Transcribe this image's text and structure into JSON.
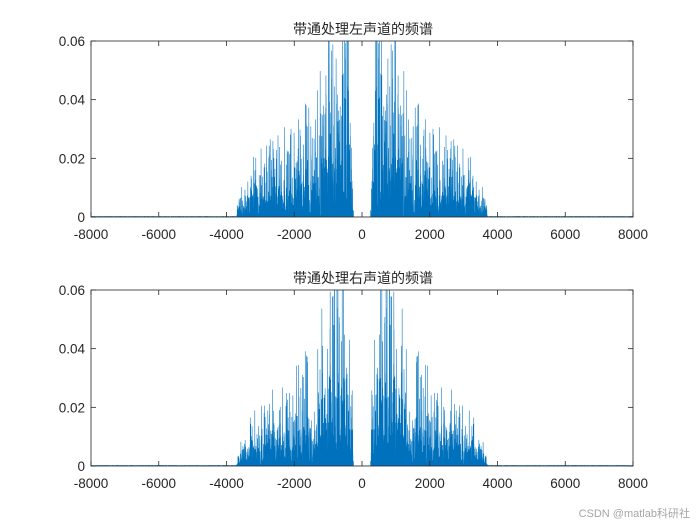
{
  "chart_data": [
    {
      "type": "line",
      "title": "带通处理左声道的频谱",
      "xlabel": "",
      "ylabel": "",
      "xlim": [
        -8000,
        8000
      ],
      "ylim": [
        0,
        0.06
      ],
      "xticks": [
        -8000,
        -6000,
        -4000,
        -2000,
        0,
        2000,
        4000,
        6000,
        8000
      ],
      "xtick_labels": [
        "-8000",
        "-6000",
        "-4000",
        "-2000",
        "0",
        "2000",
        "4000",
        "6000",
        "8000"
      ],
      "yticks": [
        0,
        0.02,
        0.04,
        0.06
      ],
      "ytick_labels": [
        "0",
        "0.02",
        "0.04",
        "0.06"
      ],
      "grid": false,
      "box": true,
      "series_color": "#0072BD",
      "passband_hz": [
        300,
        3600
      ],
      "envelope": {
        "freq_hz": [
          0,
          250,
          300,
          500,
          700,
          900,
          1000,
          1100,
          1300,
          1500,
          1700,
          2000,
          2300,
          2600,
          2900,
          3200,
          3400,
          3600,
          3700,
          8000
        ],
        "magnitude": [
          0.0,
          0.0,
          0.045,
          0.06,
          0.06,
          0.06,
          0.06,
          0.045,
          0.038,
          0.033,
          0.03,
          0.027,
          0.024,
          0.022,
          0.02,
          0.017,
          0.014,
          0.012,
          0.0003,
          0.0003
        ]
      }
    },
    {
      "type": "line",
      "title": "带通处理右声道的频谱",
      "xlabel": "",
      "ylabel": "",
      "xlim": [
        -8000,
        8000
      ],
      "ylim": [
        0,
        0.06
      ],
      "xticks": [
        -8000,
        -6000,
        -4000,
        -2000,
        0,
        2000,
        4000,
        6000,
        8000
      ],
      "xtick_labels": [
        "-8000",
        "-6000",
        "-4000",
        "-2000",
        "0",
        "2000",
        "4000",
        "6000",
        "8000"
      ],
      "yticks": [
        0,
        0.02,
        0.04,
        0.06
      ],
      "ytick_labels": [
        "0",
        "0.02",
        "0.04",
        "0.06"
      ],
      "grid": false,
      "box": true,
      "series_color": "#0072BD",
      "passband_hz": [
        300,
        3600
      ],
      "envelope": {
        "freq_hz": [
          0,
          250,
          300,
          500,
          700,
          900,
          1000,
          1100,
          1300,
          1500,
          1700,
          2000,
          2300,
          2600,
          2900,
          3200,
          3400,
          3600,
          3700,
          8000
        ],
        "magnitude": [
          0.0,
          0.0,
          0.045,
          0.06,
          0.06,
          0.06,
          0.06,
          0.046,
          0.04,
          0.034,
          0.03,
          0.027,
          0.024,
          0.022,
          0.02,
          0.017,
          0.014,
          0.012,
          0.0003,
          0.0003
        ]
      }
    }
  ],
  "watermark": "CSDN @matlab科研社"
}
